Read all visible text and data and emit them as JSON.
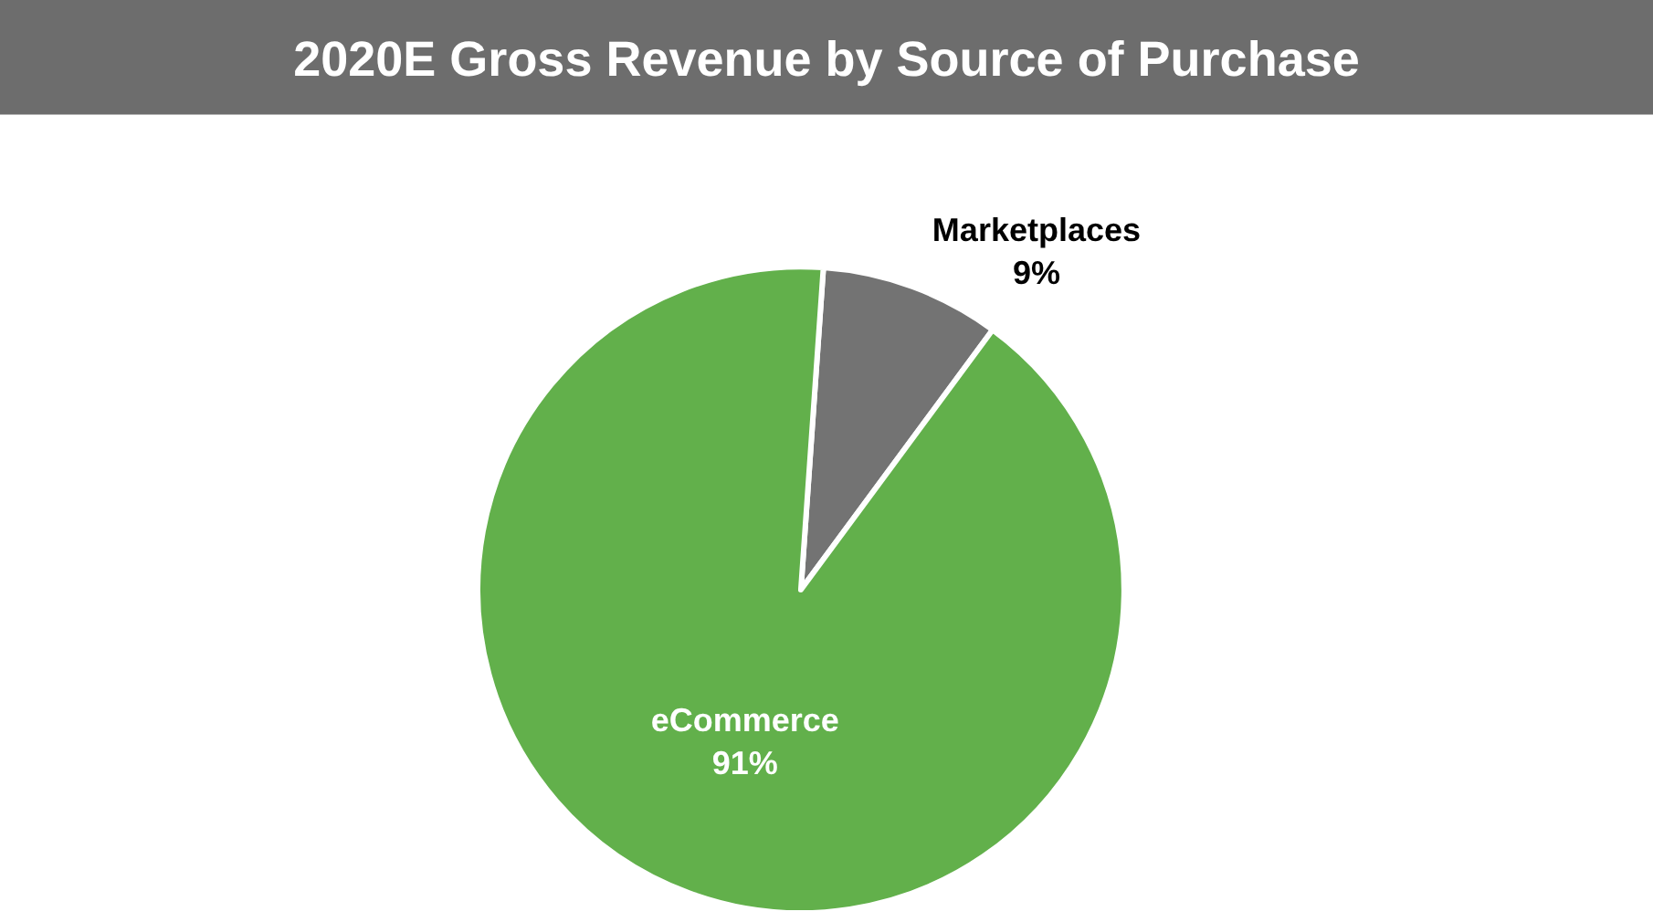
{
  "chart_data": {
    "type": "pie",
    "title": "2020E Gross Revenue by Source of Purchase",
    "categories": [
      "Marketplaces",
      "eCommerce"
    ],
    "values": [
      9,
      91
    ],
    "value_labels": [
      "9%",
      "91%"
    ],
    "colors": [
      "#737373",
      "#62b04b"
    ],
    "legend": false
  }
}
